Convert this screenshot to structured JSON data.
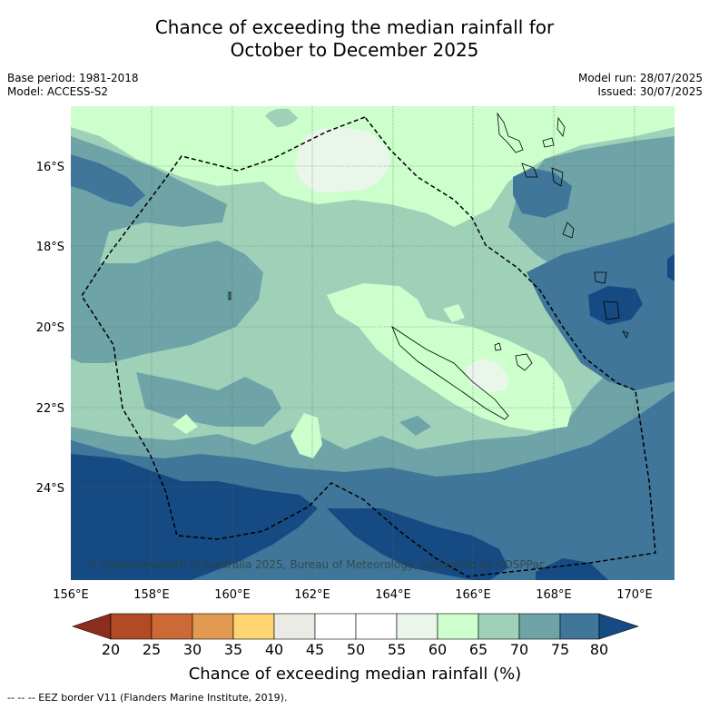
{
  "title_line1": "Chance of exceeding the median rainfall for",
  "title_line2": "October to December 2025",
  "meta": {
    "base_period": "Base period: 1981-2018",
    "model": "Model: ACCESS-S2",
    "model_run": "Model run: 28/07/2025",
    "issued": "Issued: 30/07/2025"
  },
  "map": {
    "lon_ticks": [
      "156°E",
      "158°E",
      "160°E",
      "162°E",
      "164°E",
      "166°E",
      "168°E",
      "170°E"
    ],
    "lat_ticks": [
      "16°S",
      "18°S",
      "20°S",
      "22°S",
      "24°S"
    ],
    "copyright": "© Commonwealth of Australia 2025, Bureau of Meteorology, supported by COSPPac"
  },
  "colorbar": {
    "label": "Chance of exceeding median rainfall (%)",
    "ticks": [
      "20",
      "25",
      "30",
      "35",
      "40",
      "45",
      "50",
      "55",
      "60",
      "65",
      "70",
      "75",
      "80"
    ],
    "colors": {
      "below20": "#8c2d1d",
      "c20_25": "#b24a26",
      "c25_30": "#cb6a37",
      "c30_35": "#e29a52",
      "c35_40": "#ffd573",
      "c40_45": "#ebebe6",
      "c45_50": "#ffffff",
      "c50_55": "#ffffff",
      "c55_60": "#eaf6ea",
      "c60_65": "#ccffcc",
      "c65_70": "#9fd1b9",
      "c70_75": "#6ea3a8",
      "c75_80": "#3f7699",
      "above80": "#164a82"
    }
  },
  "legend_note": "-- -- -- EEZ border V11 (Flanders Marine Institute, 2019)."
}
